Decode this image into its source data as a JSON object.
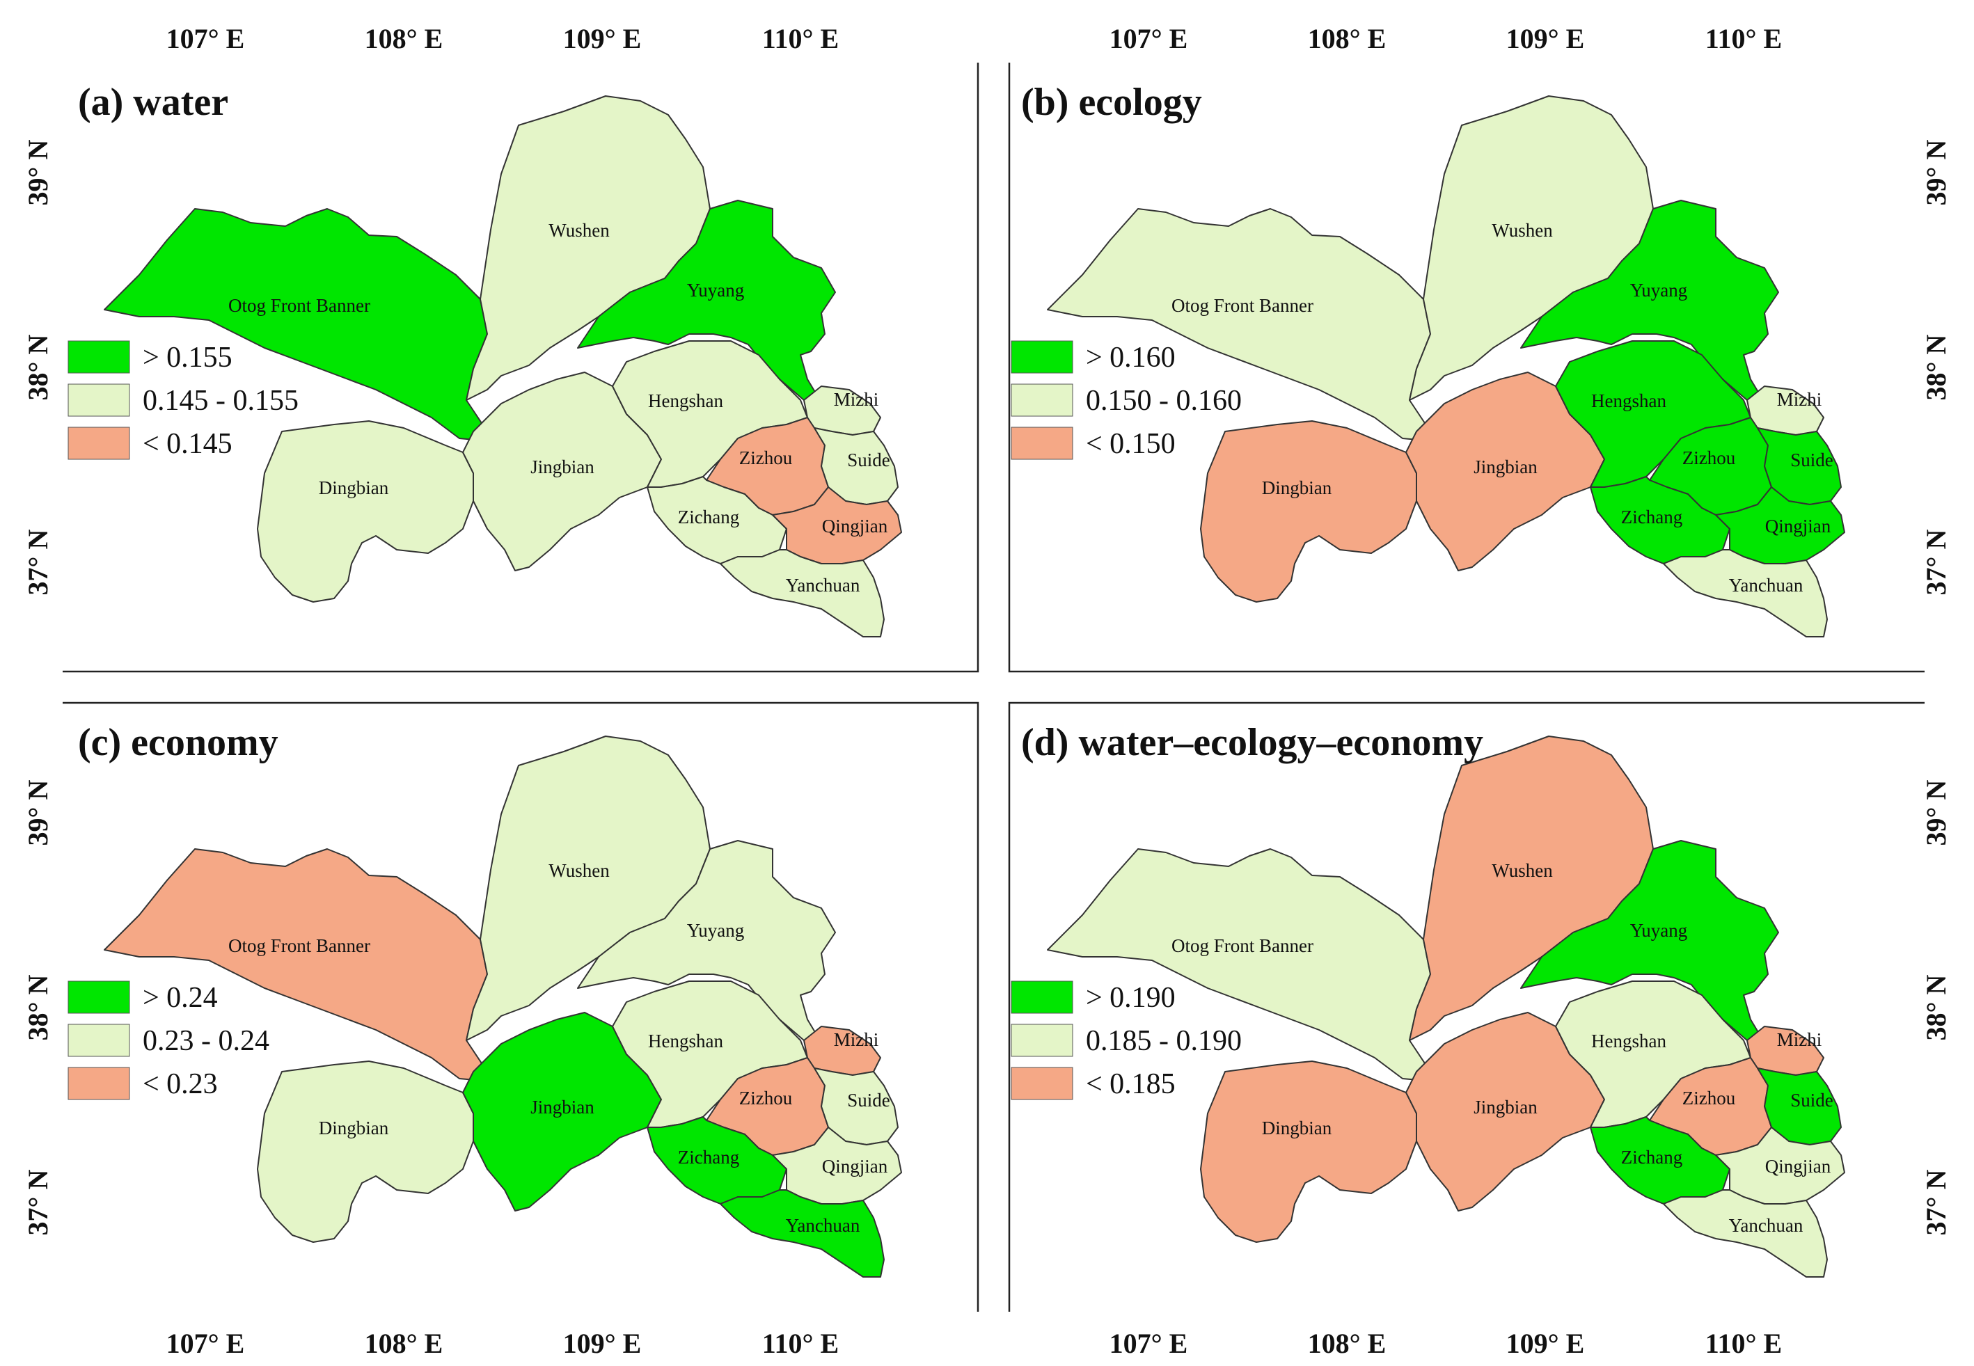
{
  "colors": {
    "high": "#00e600",
    "mid": "#e4f5c8",
    "low": "#f5a886",
    "outline": "#333333"
  },
  "axes": {
    "longitudes": [
      "107° E",
      "108° E",
      "109° E",
      "110° E"
    ],
    "latitudes": [
      "39° N",
      "38° N",
      "37° N"
    ]
  },
  "panels": [
    {
      "title": "(a) water",
      "legend": [
        {
          "label": "> 0.155",
          "class": "high"
        },
        {
          "label": "0.145 - 0.155",
          "class": "mid"
        },
        {
          "label": "< 0.145",
          "class": "low"
        }
      ],
      "counties": {
        "Otog Front Banner": "high",
        "Wushen": "mid",
        "Yuyang": "high",
        "Dingbian": "mid",
        "Jingbian": "mid",
        "Hengshan": "mid",
        "Mizhi": "mid",
        "Zizhou": "low",
        "Suide": "mid",
        "Zichang": "mid",
        "Qingjian": "low",
        "Yanchuan": "mid"
      }
    },
    {
      "title": "(b) ecology",
      "legend": [
        {
          "label": "> 0.160",
          "class": "high"
        },
        {
          "label": "0.150 - 0.160",
          "class": "mid"
        },
        {
          "label": "< 0.150",
          "class": "low"
        }
      ],
      "counties": {
        "Otog Front Banner": "mid",
        "Wushen": "mid",
        "Yuyang": "high",
        "Dingbian": "low",
        "Jingbian": "low",
        "Hengshan": "high",
        "Mizhi": "mid",
        "Zizhou": "high",
        "Suide": "high",
        "Zichang": "high",
        "Qingjian": "high",
        "Yanchuan": "mid"
      }
    },
    {
      "title": "(c) economy",
      "legend": [
        {
          "label": "> 0.24",
          "class": "high"
        },
        {
          "label": "0.23 - 0.24",
          "class": "mid"
        },
        {
          "label": "< 0.23",
          "class": "low"
        }
      ],
      "counties": {
        "Otog Front Banner": "low",
        "Wushen": "mid",
        "Yuyang": "mid",
        "Dingbian": "mid",
        "Jingbian": "high",
        "Hengshan": "mid",
        "Mizhi": "low",
        "Zizhou": "low",
        "Suide": "mid",
        "Zichang": "high",
        "Qingjian": "mid",
        "Yanchuan": "high"
      }
    },
    {
      "title": "(d) water–ecology–economy",
      "legend": [
        {
          "label": "> 0.190",
          "class": "high"
        },
        {
          "label": "0.185 - 0.190",
          "class": "mid"
        },
        {
          "label": "< 0.185",
          "class": "low"
        }
      ],
      "counties": {
        "Otog Front Banner": "mid",
        "Wushen": "low",
        "Yuyang": "high",
        "Dingbian": "low",
        "Jingbian": "low",
        "Hengshan": "mid",
        "Mizhi": "low",
        "Zizhou": "low",
        "Suide": "high",
        "Zichang": "high",
        "Qingjian": "mid",
        "Yanchuan": "mid"
      }
    }
  ]
}
